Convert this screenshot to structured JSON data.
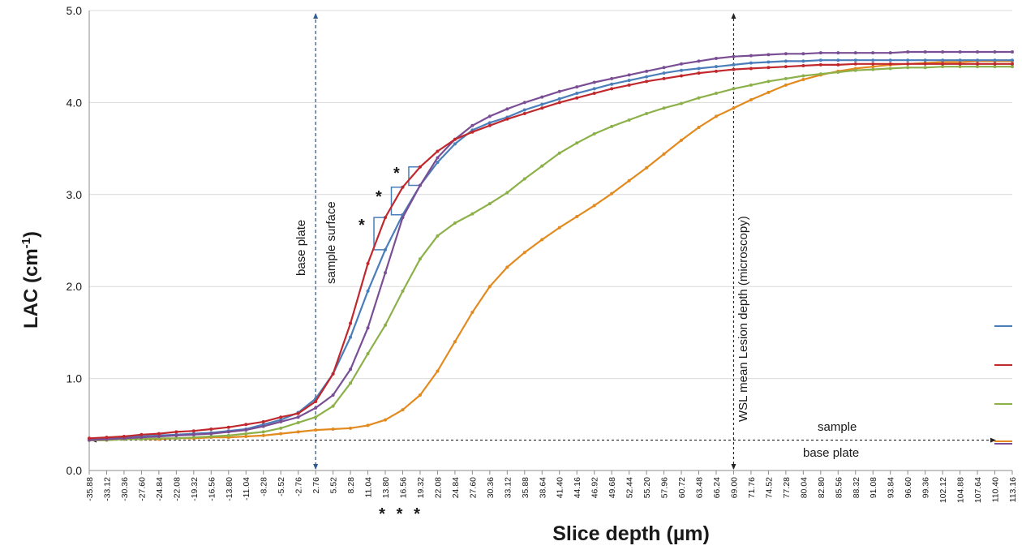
{
  "chart_data": {
    "type": "line",
    "xlabel": "Slice depth (µm)",
    "ylabel_main": "LAC (cm",
    "ylabel_sup": "-1",
    "ylabel_tail": ")",
    "ylim": [
      0,
      5
    ],
    "yticks": [
      "0.0",
      "1.0",
      "2.0",
      "3.0",
      "4.0",
      "5.0"
    ],
    "grid": true,
    "x": [
      "-35.88",
      "-33.12",
      "-30.36",
      "-27.60",
      "-24.84",
      "-22.08",
      "-19.32",
      "-16.56",
      "-13.80",
      "-11.04",
      "-8.28",
      "-5.52",
      "-2.76",
      "2.76",
      "5.52",
      "8.28",
      "11.04",
      "13.80",
      "16.56",
      "19.32",
      "22.08",
      "24.84",
      "27.60",
      "30.36",
      "33.12",
      "35.88",
      "38.64",
      "41.40",
      "44.16",
      "46.92",
      "49.68",
      "52.44",
      "55.20",
      "57.96",
      "60.72",
      "63.48",
      "66.24",
      "69.00",
      "71.76",
      "74.52",
      "77.28",
      "80.04",
      "82.80",
      "85.56",
      "88.32",
      "91.08",
      "93.84",
      "96.60",
      "99.36",
      "102.12",
      "104.88",
      "107.64",
      "110.40",
      "113.16"
    ],
    "starred_ticks": [
      "13.80",
      "16.56",
      "19.32"
    ],
    "series": [
      {
        "color": "#4a7eba",
        "values": [
          0.34,
          0.35,
          0.36,
          0.37,
          0.38,
          0.39,
          0.4,
          0.41,
          0.43,
          0.45,
          0.5,
          0.55,
          0.63,
          0.78,
          1.05,
          1.45,
          1.95,
          2.4,
          2.78,
          3.1,
          3.35,
          3.55,
          3.7,
          3.78,
          3.84,
          3.92,
          3.98,
          4.04,
          4.1,
          4.15,
          4.2,
          4.24,
          4.28,
          4.32,
          4.35,
          4.37,
          4.39,
          4.41,
          4.43,
          4.44,
          4.45,
          4.45,
          4.46,
          4.46,
          4.46,
          4.46,
          4.46,
          4.46,
          4.46,
          4.46,
          4.46,
          4.46,
          4.46,
          4.46
        ]
      },
      {
        "color": "#c0282d",
        "values": [
          0.35,
          0.36,
          0.37,
          0.39,
          0.4,
          0.42,
          0.43,
          0.45,
          0.47,
          0.5,
          0.53,
          0.58,
          0.62,
          0.75,
          1.05,
          1.6,
          2.25,
          2.75,
          3.08,
          3.3,
          3.47,
          3.6,
          3.68,
          3.75,
          3.82,
          3.88,
          3.94,
          4.0,
          4.05,
          4.1,
          4.15,
          4.19,
          4.23,
          4.26,
          4.29,
          4.32,
          4.34,
          4.36,
          4.37,
          4.38,
          4.39,
          4.4,
          4.41,
          4.41,
          4.42,
          4.42,
          4.42,
          4.42,
          4.42,
          4.42,
          4.42,
          4.42,
          4.42,
          4.42
        ]
      },
      {
        "color": "#8db14a",
        "values": [
          0.33,
          0.33,
          0.34,
          0.34,
          0.35,
          0.35,
          0.36,
          0.37,
          0.38,
          0.4,
          0.42,
          0.46,
          0.52,
          0.58,
          0.7,
          0.95,
          1.27,
          1.58,
          1.95,
          2.3,
          2.55,
          2.69,
          2.79,
          2.9,
          3.02,
          3.17,
          3.31,
          3.45,
          3.56,
          3.66,
          3.74,
          3.81,
          3.88,
          3.94,
          3.99,
          4.05,
          4.1,
          4.15,
          4.19,
          4.23,
          4.26,
          4.29,
          4.31,
          4.33,
          4.35,
          4.36,
          4.37,
          4.38,
          4.38,
          4.39,
          4.39,
          4.39,
          4.39,
          4.39
        ]
      },
      {
        "color": "#e28a1e",
        "values": [
          0.33,
          0.33,
          0.34,
          0.34,
          0.34,
          0.35,
          0.35,
          0.36,
          0.36,
          0.37,
          0.38,
          0.4,
          0.42,
          0.44,
          0.45,
          0.46,
          0.49,
          0.55,
          0.66,
          0.82,
          1.08,
          1.4,
          1.72,
          2.0,
          2.21,
          2.37,
          2.51,
          2.64,
          2.76,
          2.88,
          3.01,
          3.15,
          3.29,
          3.44,
          3.59,
          3.73,
          3.85,
          3.94,
          4.03,
          4.11,
          4.19,
          4.25,
          4.3,
          4.34,
          4.37,
          4.39,
          4.41,
          4.42,
          4.43,
          4.44,
          4.44,
          4.45,
          4.45,
          4.45
        ]
      },
      {
        "color": "#7a4e94",
        "values": [
          0.33,
          0.34,
          0.35,
          0.36,
          0.37,
          0.38,
          0.39,
          0.4,
          0.42,
          0.44,
          0.48,
          0.53,
          0.58,
          0.68,
          0.82,
          1.1,
          1.55,
          2.15,
          2.75,
          3.1,
          3.4,
          3.6,
          3.75,
          3.85,
          3.93,
          4.0,
          4.06,
          4.12,
          4.17,
          4.22,
          4.26,
          4.3,
          4.34,
          4.38,
          4.42,
          4.45,
          4.48,
          4.5,
          4.51,
          4.52,
          4.53,
          4.53,
          4.54,
          4.54,
          4.54,
          4.54,
          4.54,
          4.55,
          4.55,
          4.55,
          4.55,
          4.55,
          4.55,
          4.55
        ]
      }
    ],
    "annotations": {
      "base_plate_vertical": "base plate",
      "sample_surface": "sample surface",
      "lesion_depth": "WSL mean Lesion depth (microscopy)",
      "sample": "sample",
      "base_plate_horizontal": "base plate",
      "star": "*"
    },
    "vertical_markers_x": [
      2.76,
      69.0
    ],
    "horizontal_marker_y": 0.33,
    "legend_swatches": [
      "#4a7eba",
      "#c0282d",
      "#8db14a",
      "#e28a1e",
      "#7a4e94"
    ]
  }
}
